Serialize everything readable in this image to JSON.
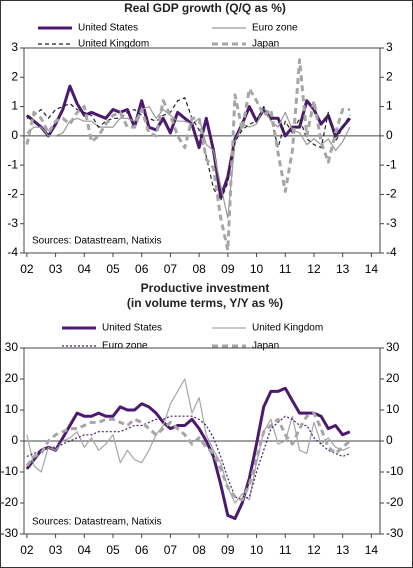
{
  "chart_data": [
    {
      "type": "line",
      "title": "Real GDP growth (Q/Q as %)",
      "note": "Sources: Datastream, Natixis",
      "x": [
        2002,
        2002.25,
        2002.5,
        2002.75,
        2003,
        2003.25,
        2003.5,
        2003.75,
        2004,
        2004.25,
        2004.5,
        2004.75,
        2005,
        2005.25,
        2005.5,
        2005.75,
        2006,
        2006.25,
        2006.5,
        2006.75,
        2007,
        2007.25,
        2007.5,
        2007.75,
        2008,
        2008.25,
        2008.5,
        2008.75,
        2009,
        2009.25,
        2009.5,
        2009.75,
        2010,
        2010.25,
        2010.5,
        2010.75,
        2011,
        2011.25,
        2011.5,
        2011.75,
        2012,
        2012.25,
        2012.5,
        2012.75,
        2013,
        2013.25
      ],
      "xlim": [
        2001.9,
        2014.3
      ],
      "xticks": [
        {
          "value": 2002,
          "label": "02"
        },
        {
          "value": 2003,
          "label": "03"
        },
        {
          "value": 2004,
          "label": "04"
        },
        {
          "value": 2005,
          "label": "05"
        },
        {
          "value": 2006,
          "label": "06"
        },
        {
          "value": 2007,
          "label": "07"
        },
        {
          "value": 2008,
          "label": "08"
        },
        {
          "value": 2009,
          "label": "09"
        },
        {
          "value": 2010,
          "label": "10"
        },
        {
          "value": 2011,
          "label": "11"
        },
        {
          "value": 2012,
          "label": "12"
        },
        {
          "value": 2013,
          "label": "13"
        },
        {
          "value": 2014,
          "label": "14"
        }
      ],
      "ylim": [
        -4,
        3
      ],
      "yticks": [
        -4,
        -3,
        -2,
        -1,
        0,
        1,
        2,
        3
      ],
      "series": [
        {
          "name": "United States",
          "color": "#4b1a6e",
          "style": "solid",
          "weight": "thick",
          "values": [
            0.7,
            0.5,
            0.3,
            0.0,
            0.4,
            0.9,
            1.7,
            1.1,
            0.7,
            0.8,
            0.7,
            0.6,
            0.9,
            0.8,
            0.9,
            0.3,
            1.2,
            0.3,
            0.2,
            0.6,
            0.1,
            0.8,
            0.6,
            0.4,
            -0.4,
            0.6,
            -0.5,
            -2.1,
            -1.4,
            -0.1,
            0.4,
            1.0,
            0.5,
            0.9,
            0.6,
            0.6,
            0.0,
            0.3,
            0.3,
            1.2,
            0.9,
            0.4,
            0.7,
            0.0,
            0.3,
            0.6
          ]
        },
        {
          "name": "Euro zone",
          "color": "#999999",
          "style": "solid",
          "weight": "thin",
          "values": [
            0.1,
            0.3,
            0.3,
            0.0,
            0.0,
            0.1,
            0.5,
            0.6,
            0.5,
            0.5,
            0.3,
            0.3,
            0.3,
            0.6,
            0.6,
            0.5,
            0.9,
            1.0,
            0.6,
            0.9,
            0.7,
            0.5,
            0.5,
            0.4,
            0.6,
            -0.3,
            -0.5,
            -1.7,
            -2.8,
            -0.2,
            0.4,
            0.3,
            0.4,
            1.0,
            0.5,
            0.3,
            0.8,
            0.2,
            0.1,
            -0.3,
            -0.1,
            -0.3,
            -0.1,
            -0.5,
            -0.2,
            0.3
          ]
        },
        {
          "name": "United Kingdom",
          "color": "#222222",
          "style": "dashed",
          "weight": "thin",
          "values": [
            0.6,
            0.7,
            0.9,
            0.6,
            0.9,
            1.0,
            1.1,
            0.9,
            0.8,
            0.7,
            0.3,
            0.5,
            0.6,
            0.6,
            0.8,
            0.9,
            0.7,
            0.6,
            0.5,
            0.7,
            0.8,
            1.2,
            1.3,
            0.6,
            0.2,
            -0.7,
            -1.8,
            -2.2,
            -1.6,
            -0.2,
            0.2,
            0.4,
            0.5,
            1.0,
            0.6,
            -0.4,
            0.5,
            0.1,
            0.6,
            -0.1,
            -0.3,
            -0.4,
            0.8,
            -0.2,
            0.3,
            0.7
          ]
        },
        {
          "name": "Japan",
          "color": "#a6a6a6",
          "style": "dashed",
          "weight": "thick",
          "values": [
            -0.3,
            0.8,
            0.6,
            0.1,
            0.5,
            0.6,
            0.4,
            0.8,
            1.0,
            -0.2,
            0.0,
            0.4,
            0.7,
            0.8,
            0.3,
            0.3,
            0.9,
            0.1,
            0.0,
            1.2,
            0.7,
            0.0,
            -0.4,
            0.6,
            0.6,
            -0.8,
            -1.1,
            -2.8,
            -3.9,
            1.4,
            0.2,
            1.6,
            1.2,
            0.7,
            0.9,
            -0.6,
            -1.9,
            -0.5,
            2.6,
            0.0,
            1.2,
            -0.2,
            -0.9,
            0.1,
            0.9,
            0.9
          ]
        }
      ]
    },
    {
      "type": "line",
      "title": "Productive investment",
      "subtitle": "(in volume terms, Y/Y as %)",
      "note": "Sources: Datastream, Natixis",
      "x": [
        2002,
        2002.25,
        2002.5,
        2002.75,
        2003,
        2003.25,
        2003.5,
        2003.75,
        2004,
        2004.25,
        2004.5,
        2004.75,
        2005,
        2005.25,
        2005.5,
        2005.75,
        2006,
        2006.25,
        2006.5,
        2006.75,
        2007,
        2007.25,
        2007.5,
        2007.75,
        2008,
        2008.25,
        2008.5,
        2008.75,
        2009,
        2009.25,
        2009.5,
        2009.75,
        2010,
        2010.25,
        2010.5,
        2010.75,
        2011,
        2011.25,
        2011.5,
        2011.75,
        2012,
        2012.25,
        2012.5,
        2012.75,
        2013,
        2013.25
      ],
      "xlim": [
        2001.9,
        2014.3
      ],
      "xticks": [
        {
          "value": 2002,
          "label": "02"
        },
        {
          "value": 2003,
          "label": "03"
        },
        {
          "value": 2004,
          "label": "04"
        },
        {
          "value": 2005,
          "label": "05"
        },
        {
          "value": 2006,
          "label": "06"
        },
        {
          "value": 2007,
          "label": "07"
        },
        {
          "value": 2008,
          "label": "08"
        },
        {
          "value": 2009,
          "label": "09"
        },
        {
          "value": 2010,
          "label": "10"
        },
        {
          "value": 2011,
          "label": "11"
        },
        {
          "value": 2012,
          "label": "12"
        },
        {
          "value": 2013,
          "label": "13"
        },
        {
          "value": 2014,
          "label": "14"
        }
      ],
      "ylim": [
        -30,
        30
      ],
      "yticks": [
        -30,
        -20,
        -10,
        0,
        10,
        20,
        30
      ],
      "series": [
        {
          "name": "United States",
          "color": "#4b1a6e",
          "style": "solid",
          "weight": "thick",
          "values": [
            -9,
            -6,
            -3,
            -2,
            -3,
            1,
            5,
            9,
            8,
            8,
            9,
            8,
            8,
            11,
            10,
            10,
            12,
            11,
            9,
            6,
            4,
            5,
            5,
            7,
            4,
            0,
            -5,
            -14,
            -24,
            -25,
            -20,
            -12,
            -1,
            11,
            16,
            16,
            17,
            13,
            9,
            9,
            9,
            8,
            4,
            5,
            2,
            3
          ]
        },
        {
          "name": "United Kingdom",
          "color": "#a6a6a6",
          "style": "solid",
          "weight": "thin",
          "values": [
            2,
            -8,
            -10,
            -2,
            -3,
            0,
            1,
            3,
            -2,
            1,
            -3,
            -1,
            2,
            -7,
            -3,
            -6,
            -7,
            -3,
            2,
            5,
            12,
            16,
            20,
            9,
            14,
            2,
            -3,
            -7,
            -15,
            -20,
            -17,
            -19,
            -7,
            3,
            7,
            -1,
            0,
            8,
            -3,
            -4,
            6,
            -1,
            1,
            -2,
            -3,
            -2
          ]
        },
        {
          "name": "Euro zone",
          "color": "#4b1a6e",
          "style": "dotted",
          "weight": "thin",
          "values": [
            -5,
            -4,
            -3,
            -2,
            -2,
            -1,
            0,
            1,
            2,
            2,
            3,
            3,
            3,
            3,
            4,
            5,
            5,
            6,
            7,
            7,
            8,
            8,
            8,
            8,
            7,
            5,
            1,
            -5,
            -12,
            -18,
            -19,
            -18,
            -10,
            -3,
            4,
            6,
            8,
            7,
            5,
            5,
            1,
            -1,
            -3,
            -4,
            -5,
            -4
          ]
        },
        {
          "name": "Japan",
          "color": "#a6a6a6",
          "style": "dashed",
          "weight": "thick",
          "values": [
            -8,
            -5,
            -4,
            0,
            2,
            3,
            4,
            4,
            5,
            6,
            6,
            7,
            7,
            6,
            5,
            7,
            6,
            4,
            2,
            4,
            6,
            4,
            2,
            -1,
            1,
            -2,
            -4,
            -9,
            -15,
            -18,
            -19,
            -14,
            -6,
            3,
            5,
            7,
            2,
            -1,
            4,
            8,
            9,
            4,
            -2,
            -4,
            -2,
            0
          ]
        }
      ]
    }
  ]
}
